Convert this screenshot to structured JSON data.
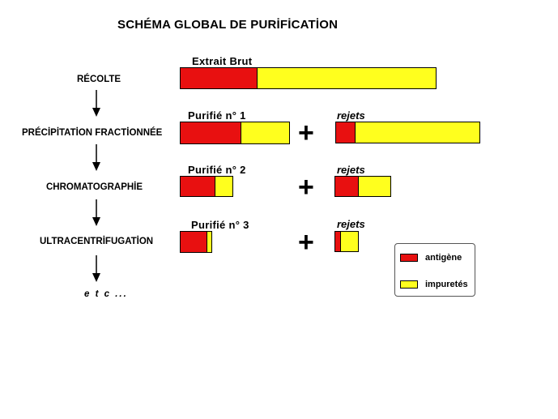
{
  "title": "SCHÉMA GLOBAL DE PURİFİCATİON",
  "colors": {
    "antigen": "#e81010",
    "impurity": "#ffff1e",
    "border": "#000000"
  },
  "steps": [
    {
      "label": "RÉCOLTE"
    },
    {
      "label": "PRÉCİPİTATİON FRACTİONNÉE"
    },
    {
      "label": "CHROMATOGRAPHİE"
    },
    {
      "label": "ULTRACENTRİFUGATİON"
    }
  ],
  "etc": "e t c ...",
  "products": [
    {
      "label": "Extrait  Brut",
      "antigen_share": 0.3,
      "total_relative": 1.0
    },
    {
      "label": "Purifié  n°  1",
      "antigen_share": 0.56,
      "total_relative": 0.43
    },
    {
      "label": "Purifié  n°  2",
      "antigen_share": 0.66,
      "total_relative": 0.21
    },
    {
      "label": "Purifié  n°  3",
      "antigen_share": 0.87,
      "total_relative": 0.13
    }
  ],
  "rejects": [
    {
      "label": "rejets",
      "antigen_share": 0.13,
      "total_relative": 0.57
    },
    {
      "label": "rejets",
      "antigen_share": 0.42,
      "total_relative": 0.22
    },
    {
      "label": "rejets",
      "antigen_share": 0.22,
      "total_relative": 0.1
    }
  ],
  "plus_symbol": "+",
  "legend": {
    "antigen_label": "antigène",
    "impurity_label": "impuretés"
  }
}
